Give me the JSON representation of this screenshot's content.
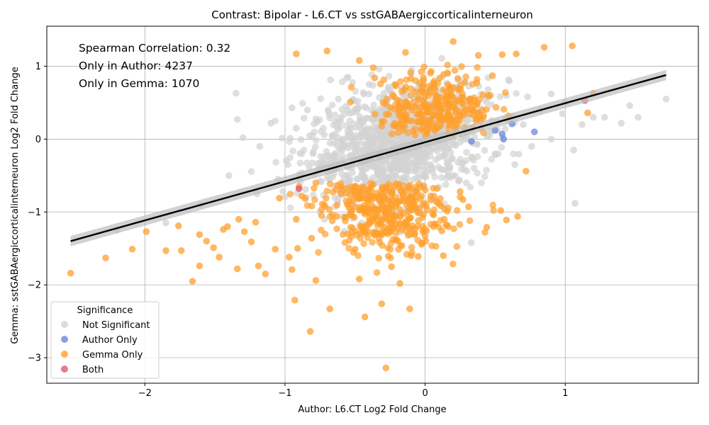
{
  "chart_data": {
    "type": "scatter",
    "title": "Contrast: Bipolar - L6.CT vs sstGABAergiccorticalinterneuron",
    "xlabel": "Author: L6.CT Log2 Fold Change",
    "ylabel": "Gemma: sstGABAergiccorticalinterneuron Log2 Fold Change",
    "xlim": [
      -2.7,
      1.95
    ],
    "ylim": [
      -3.35,
      1.55
    ],
    "xticks": [
      -2,
      -1,
      0,
      1
    ],
    "yticks": [
      -3,
      -2,
      -1,
      0,
      1
    ],
    "xtick_labels": [
      "−2",
      "−1",
      "0",
      "1"
    ],
    "ytick_labels": [
      "−3",
      "−2",
      "−1",
      "0",
      "1"
    ],
    "grid": true,
    "annotations": [
      "Spearman Correlation: 0.32",
      "Only in Author: 4237",
      "Only in Gemma: 1070"
    ],
    "regression_line": {
      "x": [
        -2.53,
        1.72
      ],
      "y": [
        -1.4,
        0.88
      ]
    },
    "legend": {
      "title": "Significance",
      "placement": "lower-left",
      "entries": [
        {
          "label": "Not Significant",
          "color": "#d3d3d3"
        },
        {
          "label": "Author Only",
          "color": "#6b88e0"
        },
        {
          "label": "Gemma Only",
          "color": "#ff9f2e"
        },
        {
          "label": "Both",
          "color": "#e05a6f"
        }
      ]
    },
    "colors": {
      "not_significant": "#d3d3d3",
      "author_only": "#6b88e0",
      "gemma_only": "#ff9f2e",
      "both": "#e05a6f",
      "line": "#000000",
      "band": "#bdbdbd"
    },
    "series": [
      {
        "name": "Author Only",
        "x": [
          0.62,
          0.55,
          0.78,
          0.56,
          0.33,
          0.5
        ],
        "y": [
          0.21,
          0.07,
          0.1,
          0.0,
          -0.03,
          0.12
        ]
      },
      {
        "name": "Both",
        "x": [
          -0.9,
          1.14
        ],
        "y": [
          -0.68,
          0.53
        ]
      },
      {
        "name": "Gemma Only",
        "x": [
          -2.53,
          -2.28,
          -2.09,
          -1.99,
          -1.85,
          -1.76,
          -1.74,
          -1.66,
          -1.61,
          -1.61,
          -1.56,
          -1.51,
          -1.47,
          -1.44,
          -1.41,
          -1.34,
          -1.33,
          -1.29,
          -1.24,
          -1.21,
          -1.19,
          -1.14,
          -1.07,
          -1.04,
          -0.97,
          -0.95,
          -0.93,
          -0.92,
          -0.91,
          -0.88,
          -0.82,
          -0.81,
          -0.78,
          -0.68,
          -0.63,
          -0.5,
          -0.47,
          -0.43,
          -0.42,
          -0.31,
          -0.28,
          -0.24,
          -0.18,
          -0.11,
          -0.1,
          -0.05,
          0.06,
          0.12,
          0.13,
          0.27,
          0.31,
          0.44,
          0.54,
          0.58,
          0.66,
          0.72,
          0.85,
          1.05,
          1.16,
          1.2,
          -0.92,
          -0.7,
          -0.47,
          -0.37,
          -0.14,
          0.2,
          0.38,
          0.55,
          0.65,
          -0.9,
          -0.78,
          -0.36,
          -0.1,
          0.16,
          0.48,
          -0.6,
          -0.41,
          -0.26,
          0.06,
          0.25,
          -0.55,
          -0.44,
          -0.33,
          -0.22,
          -0.08,
          0.04,
          -0.3,
          -0.12,
          0.32,
          0.45
        ],
        "y": [
          -1.84,
          -1.63,
          -1.51,
          -1.27,
          -1.53,
          -1.19,
          -1.53,
          -1.95,
          -1.74,
          -1.31,
          -1.4,
          -1.49,
          -1.62,
          -1.24,
          -1.2,
          -1.78,
          -1.1,
          -1.27,
          -1.41,
          -1.14,
          -1.74,
          -1.85,
          -1.51,
          -0.81,
          -1.62,
          -1.79,
          -2.21,
          -1.1,
          -1.5,
          -0.78,
          -2.64,
          -1.36,
          -1.94,
          -2.33,
          -1.06,
          -1.51,
          -1.92,
          -2.44,
          -1.2,
          -2.26,
          -3.14,
          -1.75,
          -1.98,
          -2.33,
          -1.6,
          -1.61,
          -1.04,
          -1.26,
          -1.6,
          -0.83,
          -0.93,
          -1.21,
          -0.98,
          -1.11,
          -1.06,
          -0.44,
          1.26,
          1.28,
          0.36,
          0.63,
          1.17,
          1.21,
          1.08,
          0.98,
          1.19,
          1.34,
          1.15,
          1.16,
          1.17,
          -0.65,
          -0.6,
          0.84,
          0.83,
          0.91,
          0.87,
          -0.75,
          -0.83,
          -1.0,
          -1.2,
          -0.72,
          -1.3,
          -1.25,
          -1.15,
          -1.05,
          -0.9,
          -0.78,
          0.5,
          0.45,
          0.55,
          0.6
        ]
      },
      {
        "name": "Not Significant",
        "x": [
          -2.2,
          -1.85,
          -1.6,
          -1.35,
          -1.34,
          -1.3,
          -1.18,
          -1.1,
          -1.05,
          -0.98,
          -0.92,
          -0.85,
          -0.84,
          -0.8,
          -0.72,
          -0.66,
          -0.6,
          -0.55,
          -0.52,
          -0.48,
          -0.45,
          -0.4,
          -0.36,
          -0.33,
          -0.3,
          -0.25,
          -0.2,
          -0.18,
          -0.15,
          -0.1,
          -0.06,
          -0.02,
          0.02,
          0.05,
          0.1,
          0.14,
          0.2,
          0.24,
          0.3,
          0.35,
          0.4,
          0.46,
          0.52,
          0.58,
          0.64,
          0.7,
          0.76,
          0.82,
          0.9,
          0.98,
          1.06,
          1.12,
          1.2,
          1.28,
          1.4,
          1.46,
          1.52,
          1.72,
          1.07,
          0.33,
          -0.55,
          -0.95,
          -1.2,
          0.6,
          0.9,
          1.0,
          -0.3,
          -0.62,
          -0.4,
          0.22,
          -0.1,
          0.12,
          0.45,
          -0.75,
          -1.4
        ],
        "y": [
          -1.25,
          -1.15,
          -0.9,
          0.63,
          0.27,
          0.02,
          -0.1,
          0.22,
          -0.55,
          -0.35,
          0.15,
          -0.8,
          0.4,
          -0.2,
          0.06,
          -0.52,
          0.3,
          -0.12,
          -0.7,
          0.52,
          -0.3,
          0.62,
          0.0,
          -0.45,
          0.35,
          -0.2,
          0.18,
          -0.62,
          0.45,
          0.05,
          -0.38,
          0.28,
          -0.1,
          0.5,
          -0.25,
          0.12,
          -0.5,
          0.3,
          0.0,
          -0.4,
          0.42,
          0.1,
          -0.2,
          0.6,
          -0.35,
          0.2,
          -0.1,
          0.4,
          0.0,
          0.35,
          -0.15,
          0.2,
          0.3,
          0.3,
          0.22,
          0.46,
          0.3,
          0.55,
          -0.88,
          -1.42,
          0.85,
          0.43,
          -0.75,
          0.8,
          0.62,
          0.5,
          -0.9,
          0.55,
          0.75,
          0.7,
          0.9,
          0.85,
          0.68,
          -1.0,
          -0.5
        ]
      }
    ]
  }
}
